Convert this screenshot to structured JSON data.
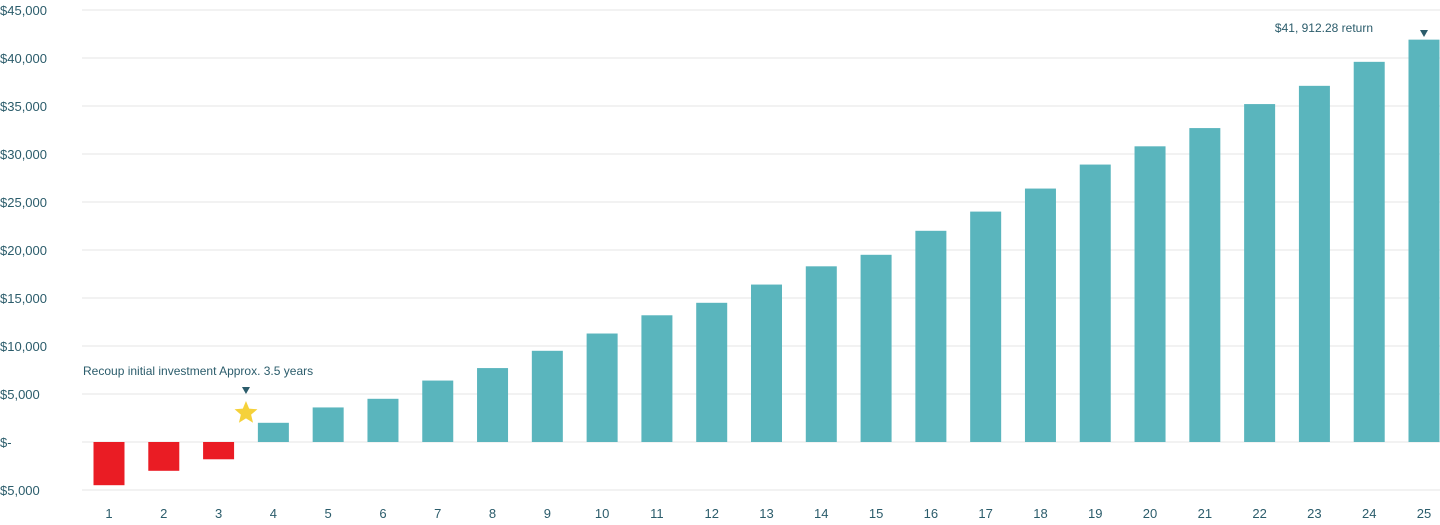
{
  "chart_data": {
    "type": "bar",
    "title": "",
    "xlabel": "",
    "ylabel": "",
    "ylim": [
      -5000,
      45000
    ],
    "yticks": [
      -5000,
      0,
      5000,
      10000,
      15000,
      20000,
      25000,
      30000,
      35000,
      40000,
      45000
    ],
    "ytick_labels": [
      "$5,000",
      "$-",
      "$5,000",
      "$10,000",
      "$15,000",
      "$20,000",
      "$25,000",
      "$30,000",
      "$35,000",
      "$40,000",
      "$45,000"
    ],
    "categories": [
      "1",
      "2",
      "3",
      "4",
      "5",
      "6",
      "7",
      "8",
      "9",
      "10",
      "11",
      "12",
      "13",
      "14",
      "15",
      "16",
      "17",
      "18",
      "19",
      "20",
      "21",
      "22",
      "23",
      "24",
      "25"
    ],
    "values": [
      -4500,
      -3000,
      -1800,
      2000,
      3600,
      4500,
      6400,
      7700,
      9500,
      11300,
      13200,
      14500,
      16400,
      18300,
      19500,
      22000,
      24000,
      26400,
      28900,
      30800,
      32700,
      35200,
      37100,
      39600,
      41912.28
    ],
    "grid": true,
    "colors": {
      "positive": "#5ab5bd",
      "negative": "#ea1c24",
      "text": "#2b5c6b",
      "grid": "#e6e6e6",
      "star": "#f5d13a",
      "marker": "#2b5c6b"
    },
    "annotations": [
      {
        "text": "Recoup initial investment Approx. 3.5 years",
        "x": 3.5,
        "marker": "star"
      },
      {
        "text": "$41, 912.28 return",
        "x": 25,
        "marker": "triangle"
      }
    ]
  }
}
